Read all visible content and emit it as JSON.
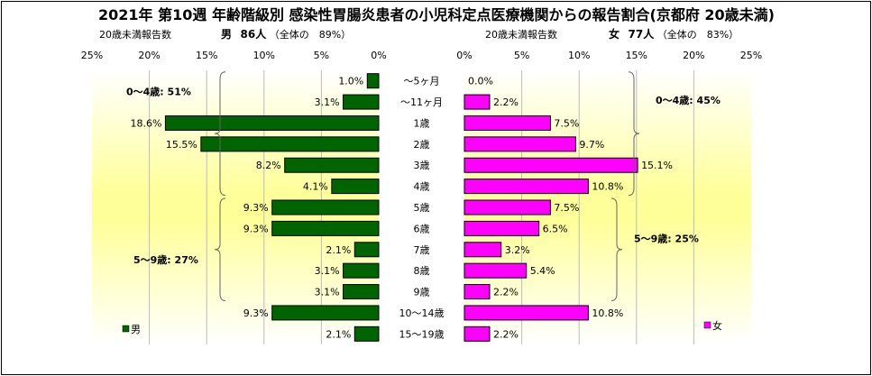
{
  "title": "2021年 第10週 年齢階級別 感染性胃腸炎患者の小児科定点医療機関からの報告割合(京都府 20歳未満)",
  "left_header": {
    "report_label": "20歳未満報告数",
    "sex": "男",
    "count": "86人",
    "share": "（全体の　89%）"
  },
  "right_header": {
    "report_label": "20歳未満報告数",
    "sex": "女",
    "count": "77人",
    "share": "（全体の　83%）"
  },
  "colors": {
    "male": "#006400",
    "female": "#ff00ff",
    "plot_bg_top": "#ffffff",
    "plot_bg_mid": "#ffff99"
  },
  "chart_data": {
    "type": "bar",
    "categories": [
      "～5ヶ月",
      "～11ヶ月",
      "1歳",
      "2歳",
      "3歳",
      "4歳",
      "5歳",
      "6歳",
      "7歳",
      "8歳",
      "9歳",
      "10～14歳",
      "15～19歳"
    ],
    "series": [
      {
        "name": "男",
        "values": [
          1.0,
          3.1,
          18.6,
          15.5,
          8.2,
          4.1,
          9.3,
          9.3,
          2.1,
          3.1,
          3.1,
          9.3,
          2.1
        ],
        "labels": [
          "1.0%",
          "3.1%",
          "18.6%",
          "15.5%",
          "8.2%",
          "4.1%",
          "9.3%",
          "9.3%",
          "2.1%",
          "3.1%",
          "3.1%",
          "9.3%",
          "2.1%"
        ]
      },
      {
        "name": "女",
        "values": [
          0.0,
          2.2,
          7.5,
          9.7,
          15.1,
          10.8,
          7.5,
          6.5,
          3.2,
          5.4,
          2.2,
          10.8,
          2.2
        ],
        "labels": [
          "0.0%",
          "2.2%",
          "7.5%",
          "9.7%",
          "15.1%",
          "10.8%",
          "7.5%",
          "6.5%",
          "3.2%",
          "5.4%",
          "2.2%",
          "10.8%",
          "2.2%"
        ]
      }
    ],
    "xlim": [
      0,
      25
    ],
    "ticks": [
      0,
      5,
      10,
      15,
      20,
      25
    ],
    "left_tick_labels": [
      "25%",
      "20%",
      "15%",
      "10%",
      "5%",
      "0%"
    ],
    "right_tick_labels": [
      "0%",
      "5%",
      "10%",
      "15%",
      "20%",
      "25%"
    ],
    "annotations": {
      "male_0_4": "0～4歳: 51%",
      "male_5_9": "5～9歳: 27%",
      "female_0_4": "0～4歳: 45%",
      "female_5_9": "5～9歳: 25%"
    },
    "legend": {
      "male": "男",
      "female": "女"
    }
  }
}
